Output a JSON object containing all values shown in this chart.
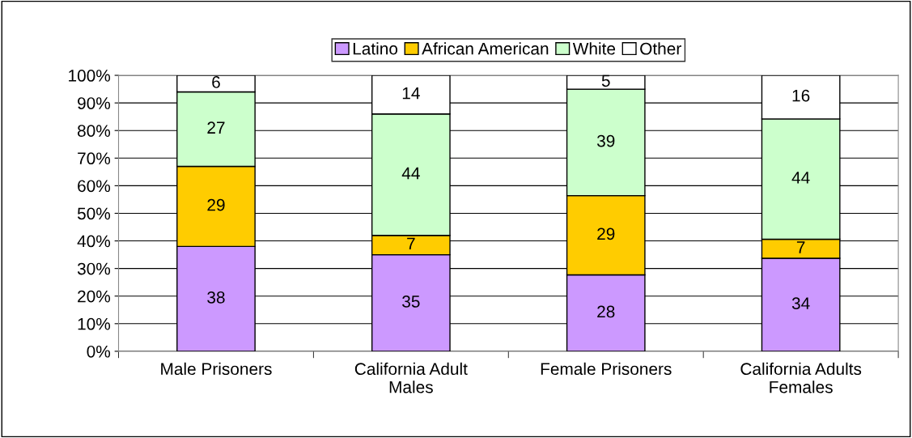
{
  "chart_data": {
    "type": "bar",
    "stacked": true,
    "categories": [
      "Male Prisoners",
      "California Adult\nMales",
      "Female Prisoners",
      "California Adults\nFemales"
    ],
    "series": [
      {
        "name": "Latino",
        "color": "#cc99ff",
        "values": [
          38,
          35,
          27.7,
          33.7
        ],
        "value_labels": [
          "38",
          "35",
          "28",
          "34"
        ]
      },
      {
        "name": "African American",
        "color": "#ffcc00",
        "values": [
          29,
          7,
          28.7,
          6.9
        ],
        "value_labels": [
          "29",
          "7",
          "29",
          "7"
        ]
      },
      {
        "name": "White",
        "color": "#ccffcc",
        "values": [
          27,
          44,
          38.6,
          43.6
        ],
        "value_labels": [
          "27",
          "44",
          "39",
          "44"
        ]
      },
      {
        "name": "Other",
        "color": "#ffffff",
        "values": [
          6,
          14,
          5.0,
          15.8
        ],
        "value_labels": [
          "6",
          "14",
          "5",
          "16"
        ]
      }
    ],
    "ylim": [
      0,
      100
    ],
    "yticks": [
      {
        "value": 0,
        "label": "0%"
      },
      {
        "value": 10,
        "label": "10%"
      },
      {
        "value": 20,
        "label": "20%"
      },
      {
        "value": 30,
        "label": "30%"
      },
      {
        "value": 40,
        "label": "40%"
      },
      {
        "value": 50,
        "label": "50%"
      },
      {
        "value": 60,
        "label": "60%"
      },
      {
        "value": 70,
        "label": "70%"
      },
      {
        "value": 80,
        "label": "80%"
      },
      {
        "value": 90,
        "label": "90%"
      },
      {
        "value": 100,
        "label": "100%"
      }
    ],
    "grid": "y",
    "legend": "top"
  }
}
